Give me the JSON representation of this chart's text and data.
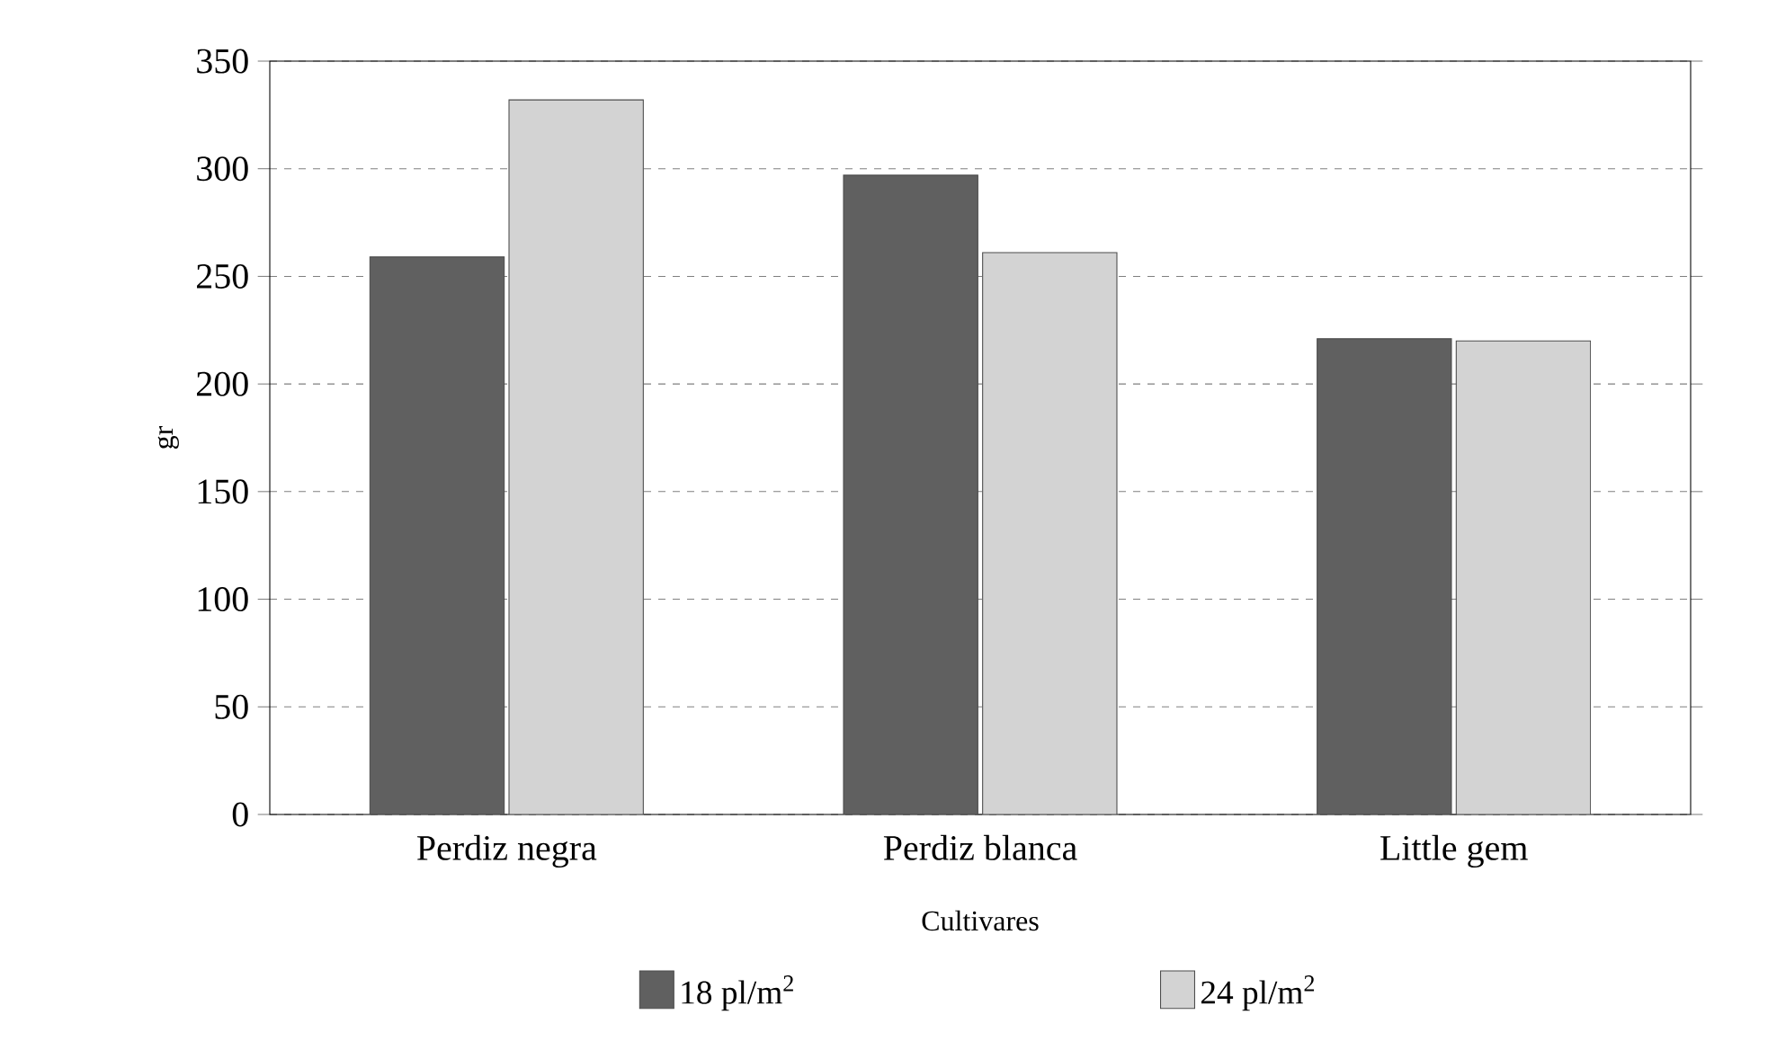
{
  "chart_data": {
    "type": "bar",
    "xlabel": "Cultivares",
    "ylabel": "gr",
    "categories": [
      "Perdiz negra",
      "Perdiz blanca",
      "Little gem"
    ],
    "series": [
      {
        "name": "18 pl/m$^{2}$",
        "color": "#606060",
        "values": [
          259,
          297,
          221
        ]
      },
      {
        "name": "24 pl/m$^{2}$",
        "color": "#d3d3d3",
        "values": [
          332,
          261,
          220
        ]
      }
    ],
    "ylim": [
      0,
      350
    ],
    "yticks": [
      0,
      50,
      100,
      150,
      200,
      250,
      300,
      350
    ],
    "grid": "y",
    "legend": "bottom"
  }
}
